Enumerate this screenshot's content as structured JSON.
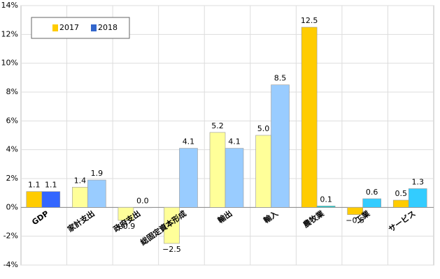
{
  "chart_data": {
    "type": "bar",
    "categories": [
      "GDP",
      "家計支出",
      "政府支出",
      "総固定資本形成",
      "輸出",
      "輸入",
      "農牧業",
      "工業",
      "サービス"
    ],
    "series": [
      {
        "name": "2017",
        "color": "#ffcc00",
        "bar_colors": [
          "#ffcc00",
          "#ffff99",
          "#ffff99",
          "#ffff99",
          "#ffff99",
          "#ffff99",
          "#ffcc00",
          "#ffcc00",
          "#ffcc00"
        ],
        "values": [
          1.1,
          1.4,
          -0.9,
          -2.5,
          5.2,
          5.0,
          12.5,
          -0.5,
          0.5
        ],
        "value_labels": [
          "1.1",
          "1.4",
          "−0.9",
          "−2.5",
          "5.2",
          "5.0",
          "12.5",
          "−0.5",
          "0.5"
        ]
      },
      {
        "name": "2018",
        "color": "#3366cc",
        "bar_colors": [
          "#3366ff",
          "#99ccff",
          "#99ccff",
          "#99ccff",
          "#99ccff",
          "#99ccff",
          "#33cccc",
          "#33ccff",
          "#33ccff"
        ],
        "values": [
          1.1,
          1.9,
          0,
          4.1,
          4.1,
          8.5,
          0.1,
          0.6,
          1.3
        ],
        "value_labels": [
          "1.1",
          "1.9",
          "0.0",
          "4.1",
          "4.1",
          "8.5",
          "0.1",
          "0.6",
          "1.3"
        ]
      }
    ],
    "ylim": [
      -4,
      14
    ],
    "yticks": [
      {
        "value": -4,
        "label": "-4%"
      },
      {
        "value": -2,
        "label": "-2%"
      },
      {
        "value": 0,
        "label": "0%"
      },
      {
        "value": 2,
        "label": "2%"
      },
      {
        "value": 4,
        "label": "4%"
      },
      {
        "value": 6,
        "label": "6%"
      },
      {
        "value": 8,
        "label": "8%"
      },
      {
        "value": 10,
        "label": "10%"
      },
      {
        "value": 12,
        "label": "12%"
      },
      {
        "value": 14,
        "label": "14%"
      }
    ],
    "grid": true,
    "negative_label_color": "#ff0000",
    "legend": "upper left"
  }
}
